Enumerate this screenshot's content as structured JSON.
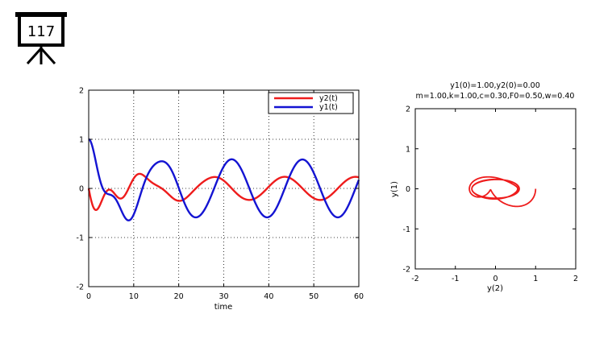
{
  "slide": {
    "number": "117",
    "icon": "presentation-board-icon"
  },
  "colors": {
    "y2": "#ee1c1c",
    "y1": "#1414d2",
    "phase": "#ee1c1c",
    "axis": "#000000"
  },
  "chart_data": [
    {
      "type": "line",
      "xlabel": "time",
      "ylabel": "",
      "xlim": [
        0,
        60
      ],
      "ylim": [
        -2,
        2
      ],
      "x_ticks": [
        0,
        10,
        20,
        30,
        40,
        50,
        60
      ],
      "y_ticks": [
        -2,
        -1,
        0,
        1,
        2
      ],
      "grid": true,
      "legend_position": "top-right",
      "model": {
        "m": 1.0,
        "k": 1.0,
        "c": 0.3,
        "F0": 0.5,
        "w": 0.4,
        "y1_0": 1.0,
        "y2_0": 0.0
      },
      "t_end": 60,
      "series": [
        {
          "name": "y2(t)",
          "color": "#ee1c1c",
          "component": "velocity"
        },
        {
          "name": "y1(t)",
          "color": "#1414d2",
          "component": "position"
        }
      ]
    },
    {
      "type": "line",
      "title_line1": "y1(0)=1.00,y2(0)=0.00",
      "title_line2": "m=1.00,k=1.00,c=0.30,F0=0.50,w=0.40",
      "xlabel": "y(2)",
      "ylabel": "y(1)",
      "xlim": [
        -2,
        2
      ],
      "ylim": [
        -2,
        2
      ],
      "x_ticks": [
        -2,
        -1,
        0,
        1,
        2
      ],
      "y_ticks": [
        -2,
        -1,
        0,
        1,
        2
      ],
      "grid": false,
      "series": [
        {
          "color": "#ee1c1c",
          "x_component": "y1",
          "y_component": "y2"
        }
      ]
    }
  ]
}
